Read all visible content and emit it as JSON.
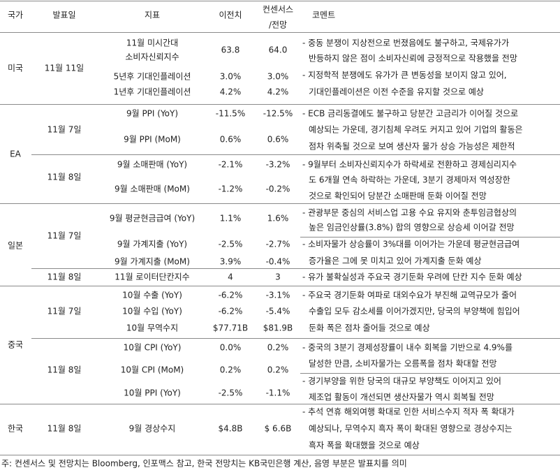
{
  "header": [
    "국가",
    "발표일",
    "지표",
    "이전치",
    [
      "컨센서스",
      "/전망"
    ],
    "코멘트"
  ],
  "countries": [
    {
      "name": "미국",
      "dates": [
        {
          "date": "11월 11일",
          "indicators": [
            {
              "name": [
                "11월 미시간대",
                "소비자신뢰지수"
              ],
              "previous": "63.8",
              "consensus": "64.0"
            },
            {
              "name": "5년후 기대인플레이션",
              "previous": "3.0%",
              "consensus": "3.0%"
            },
            {
              "name": "1년후 기대인플레이션",
              "previous": "4.2%",
              "consensus": "4.2%"
            }
          ],
          "comments": [
            "- 중동 분쟁이 지상전으로 번졌음에도 불구하고, 국제유가가",
            "반등하지 않은 점이 소비자신뢰에 긍정적으로 작용했을 전망",
            "- 지정학적 분쟁에도 유가가 큰 변동성을 보이지 않고 있어,",
            "기대인플레이션은 이전 수준을 유지할 것으로 예상"
          ]
        }
      ]
    },
    {
      "name": "EA",
      "dates": [
        {
          "date": "11월 7일",
          "indicators": [
            {
              "name": "9월 PPI (YoY)",
              "previous": "-11.5%",
              "consensus": "-12.5%"
            },
            {
              "name": "9월 PPI (MoM)",
              "previous": "0.6%",
              "consensus": "0.6%"
            }
          ],
          "comments": [
            "- ECB 금리동결에도 불구하고 당분간 고금리가 이어질 것으로",
            "예상되는 가운데, 경기침체 우려도 커지고 있어 기업의 활동은",
            "점차 위축될 것으로 보여 생산자 물가 상승 가능성은 제한적"
          ]
        },
        {
          "date": "11월 8일",
          "indicators": [
            {
              "name": "9월 소매판매 (YoY)",
              "previous": "-2.1%",
              "consensus": "-3.2%"
            },
            {
              "name": "9월 소매판매 (MoM)",
              "previous": "-1.2%",
              "consensus": "-0.2%"
            }
          ],
          "comments": [
            "- 9월부터 소비자신뢰지수가 하락세로 전환하고 경제심리지수",
            "도 6개월 연속 하락하는 가운데, 3분기 경제마저 역성장한",
            "것으로 확인되어 당분간 소매판매 둔화 이어질 전망"
          ]
        }
      ]
    },
    {
      "name": "일본",
      "dates": [
        {
          "date": "11월 7일",
          "indicators": [
            {
              "name": "9월 평균현금급여 (YoY)",
              "previous": "1.1%",
              "consensus": "1.6%"
            },
            {
              "name": "9월 가계지출 (YoY)",
              "previous": "-2.5%",
              "consensus": "-2.7%"
            },
            {
              "name": "9월 가계지출 (MoM)",
              "previous": "3.9%",
              "consensus": "-0.4%"
            }
          ],
          "comments": [
            "- 관광부문 중심의 서비스업 고용 수요 유지와 춘투임금협상의",
            "높은 임금인상률(3.8%) 합의 영향으로 상승세 이어갈 전망",
            "- 소비자물가 상승률이 3%대를 이어가는 가운데 평균현금급여",
            "증가율은 그에 못 미치고 있어 가계지출 둔화 예상"
          ]
        },
        {
          "date": "11월 8일",
          "indicators": [
            {
              "name": "11월 로이터단칸지수",
              "previous": "4",
              "consensus": "3"
            }
          ],
          "comments": [
            "- 유가 불확실성과 주요국 경기둔화 우려에 단칸 지수 둔화 예상"
          ]
        }
      ]
    },
    {
      "name": "중국",
      "dates": [
        {
          "date": "11월 7일",
          "indicators": [
            {
              "name": "10월 수출 (YoY)",
              "previous": "-6.2%",
              "consensus": "-3.1%"
            },
            {
              "name": "10월 수입 (YoY)",
              "previous": "-6.2%",
              "consensus": "-5.4%"
            },
            {
              "name": "10월 무역수지",
              "previous": "$77.71B",
              "consensus": "$81.9B"
            }
          ],
          "comments": [
            "- 주요국 경기둔화 여파로 대외수요가 부진해 교역규모가 줄어",
            "수출입 모두 감소세를 이어가겠지만, 당국의 부양책에 힘입어",
            "둔화 폭은 점차 줄어들 것으로 예상"
          ]
        },
        {
          "date": "11월 8일",
          "indicators": [
            {
              "name": "10월 CPI (YoY)",
              "previous": "0.0%",
              "consensus": "0.2%"
            },
            {
              "name": "10월 CPI (MoM)",
              "previous": "0.2%",
              "consensus": "0.2%"
            },
            {
              "name": "10월 PPI (YoY)",
              "previous": "-2.5%",
              "consensus": "-1.1%"
            }
          ],
          "comments": [
            "- 중국의 3분기 경제성장률이 내수 회복을 기반으로 4.9%를",
            "달성한 만큼, 소비자물가는 오름폭을 점차 확대할 전망",
            "- 경기부양을 위한 당국의 대규모 부양책도 이어지고 있어",
            "제조업 활동이 개선되면 생산자물가 역시 회복될 전망"
          ]
        }
      ]
    },
    {
      "name": "한국",
      "dates": [
        {
          "date": "11월 8일",
          "indicators": [
            {
              "name": "9월 경상수지",
              "previous": "$4.8B",
              "consensus": "$ 6.6B"
            }
          ],
          "comments": [
            "- 추석 연휴 해외여행 확대로 인한 서비스수지 적자 폭 확대가",
            "예상되나, 무역수지 흑자 폭이 확대된 영향으로 경상수지는",
            "흑자 폭을 확대했을 것으로 예상"
          ]
        }
      ]
    }
  ],
  "footnote": "주: 컨센서스 및 전망치는 Bloomberg, 인포맥스 참고, 한국 전망치는 KB국민은행 계산, 음영 부분은 발표치를 의미"
}
